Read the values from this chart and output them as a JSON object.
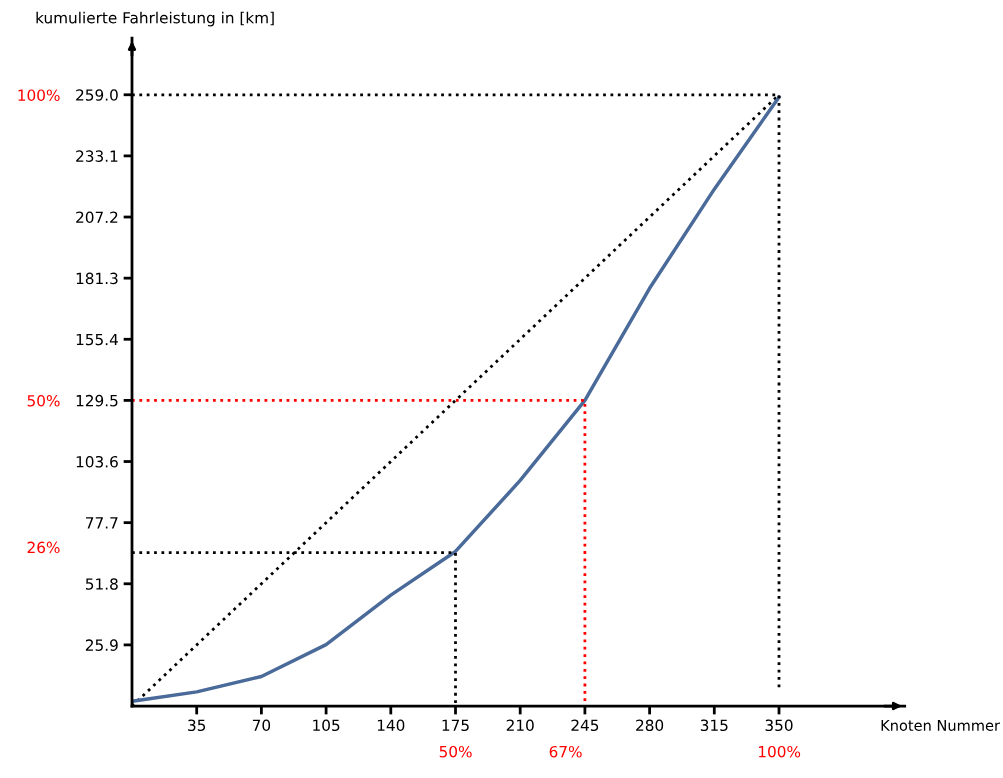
{
  "chart_data": {
    "type": "line",
    "xlabel": "Knoten Nummer",
    "ylabel": "kumulierte Fahrleistung in [km]",
    "xlim": [
      0,
      418
    ],
    "ylim": [
      0,
      283
    ],
    "xticks": [
      35,
      70,
      105,
      140,
      175,
      210,
      245,
      280,
      315,
      350
    ],
    "yticks": [
      25.9,
      51.8,
      77.7,
      103.6,
      129.5,
      155.4,
      181.3,
      207.2,
      233.1,
      {
        "value": 259,
        "label": "259.0"
      }
    ],
    "grid": false,
    "legend": false,
    "marker": "none",
    "series": [
      {
        "color": "#000000",
        "line_style": "dotted",
        "x": [
          0,
          350
        ],
        "values": [
          0,
          259
        ]
      },
      {
        "color": "#4a6a9a",
        "line_style": "solid",
        "x": [
          0,
          35,
          70,
          105,
          140,
          175,
          210,
          245,
          280,
          315,
          350
        ],
        "values": [
          2,
          6,
          12.5,
          26,
          47,
          65.5,
          95.6,
          129.5,
          177,
          219,
          258
        ]
      },
      {
        "color": "#000000",
        "line_style": "dotted",
        "x": [
          0,
          350,
          350
        ],
        "values": [
          259,
          259,
          8
        ]
      },
      {
        "color": "#ff0000",
        "line_style": "dotted",
        "x": [
          0,
          245,
          245
        ],
        "values": [
          129.5,
          129.5,
          0
        ]
      },
      {
        "color": "#000000",
        "line_style": "dotted",
        "x": [
          0,
          175,
          175
        ],
        "values": [
          65,
          65,
          0
        ]
      }
    ],
    "x2lim": [
      0,
      119.4
    ],
    "x2ticks": [
      {
        "value": 50,
        "label": "50%"
      },
      {
        "value": 67,
        "label": "67%"
      },
      {
        "value": 100,
        "label": "100%"
      }
    ],
    "y2lim": [
      0,
      109.3
    ],
    "y2ticks": [
      {
        "value": 100,
        "label": "100%"
      },
      {
        "value": 50,
        "label": "50%"
      },
      {
        "value": 26,
        "label": "26%"
      }
    ]
  }
}
